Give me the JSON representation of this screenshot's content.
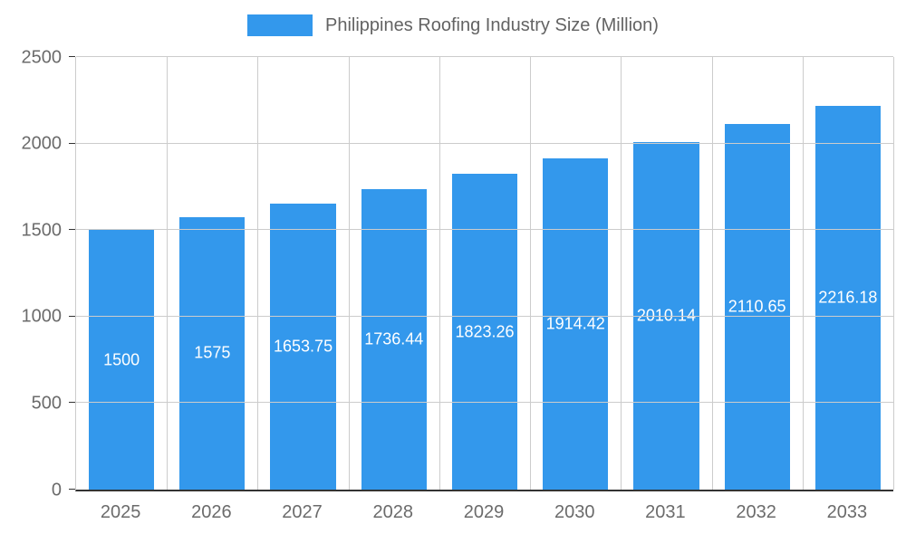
{
  "chart_data": {
    "type": "bar",
    "title": "Philippines Roofing Industry Size (Million)",
    "categories": [
      "2025",
      "2026",
      "2027",
      "2028",
      "2029",
      "2030",
      "2031",
      "2032",
      "2033"
    ],
    "values": [
      1500,
      1575,
      1653.75,
      1736.44,
      1823.26,
      1914.42,
      2010.14,
      2110.65,
      2216.18
    ],
    "value_labels": [
      "1500",
      "1575",
      "1653.75",
      "1736.44",
      "1823.26",
      "1914.42",
      "2010.14",
      "2110.65",
      "2216.18"
    ],
    "xlabel": "",
    "ylabel": "",
    "ylim": [
      0,
      2500
    ],
    "yticks": [
      0,
      500,
      1000,
      1500,
      2000,
      2500
    ],
    "grid": true,
    "legend_position": "top",
    "colors": {
      "bar": "#3398EC",
      "bar_label": "#ffffff",
      "gridline": "#cccccc",
      "axis_text": "#6b6b6b",
      "title_text": "#636363",
      "baseline": "#333333"
    }
  }
}
